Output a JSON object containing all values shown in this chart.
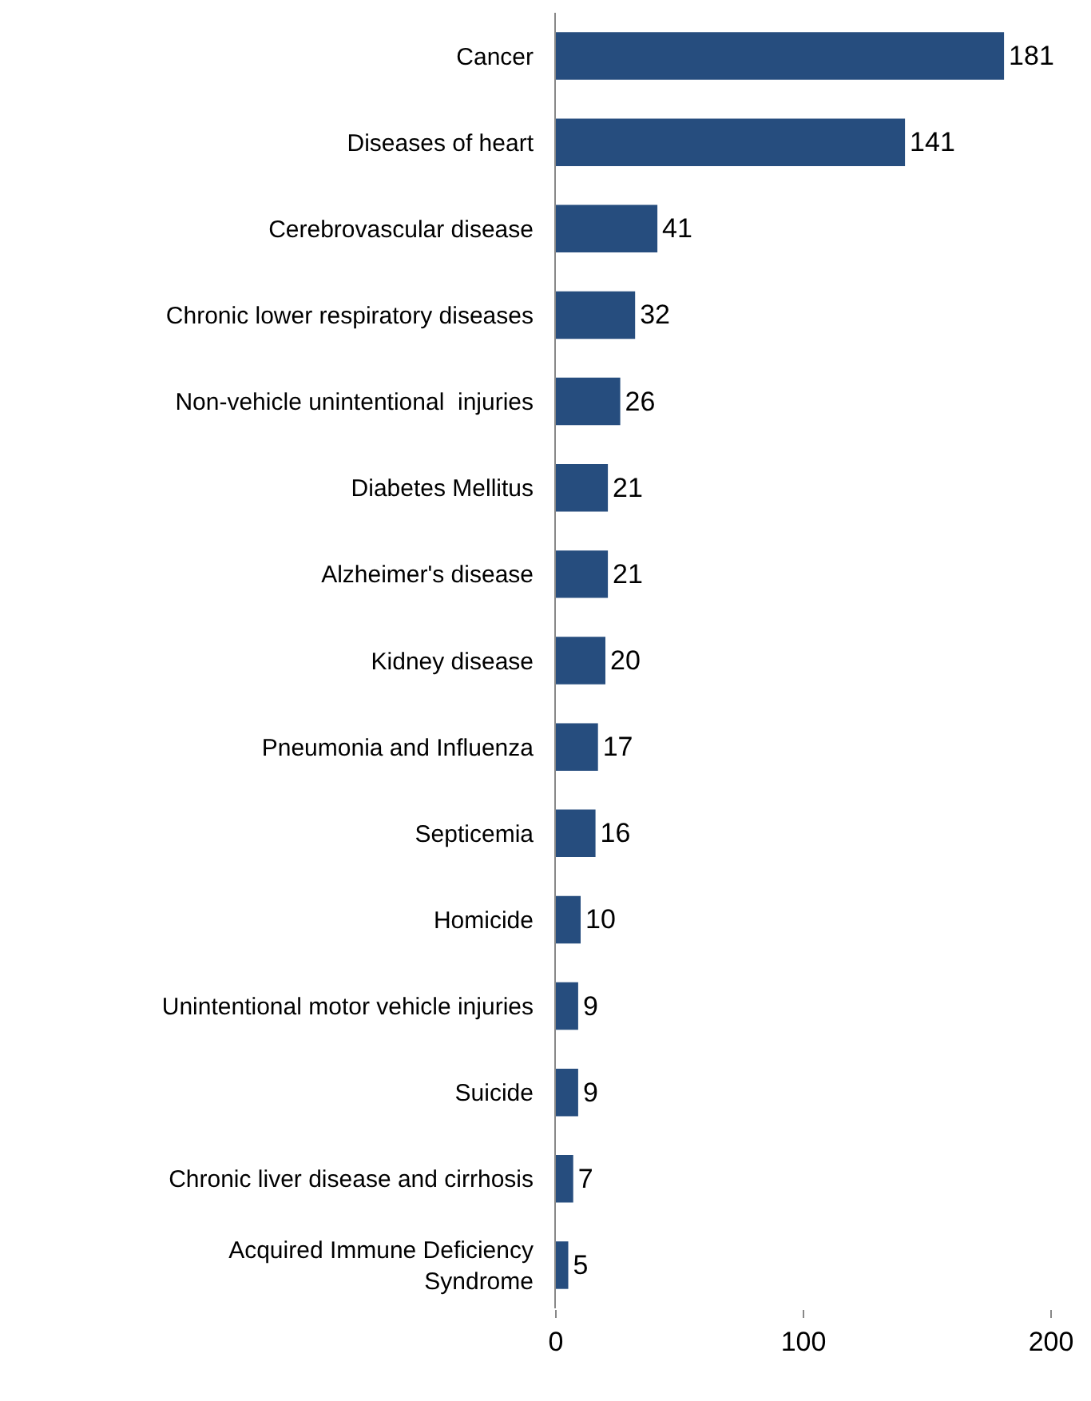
{
  "chart_data": {
    "type": "bar",
    "orientation": "horizontal",
    "categories": [
      "Cancer",
      "Diseases of heart",
      "Cerebrovascular disease",
      "Chronic lower respiratory diseases",
      "Non-vehicle unintentional  injuries",
      "Diabetes Mellitus",
      "Alzheimer's disease",
      "Kidney disease",
      "Pneumonia and Influenza",
      "Septicemia",
      "Homicide",
      "Unintentional motor vehicle injuries",
      "Suicide",
      "Chronic liver disease and cirrhosis",
      "Acquired Immune Deficiency\nSyndrome"
    ],
    "values": [
      181,
      141,
      41,
      32,
      26,
      21,
      21,
      20,
      17,
      16,
      10,
      9,
      9,
      7,
      5
    ],
    "color": "#264d7e",
    "xlim": [
      0,
      200
    ],
    "xticks": [
      0,
      100,
      200
    ],
    "data_labels": true,
    "grid": false
  }
}
